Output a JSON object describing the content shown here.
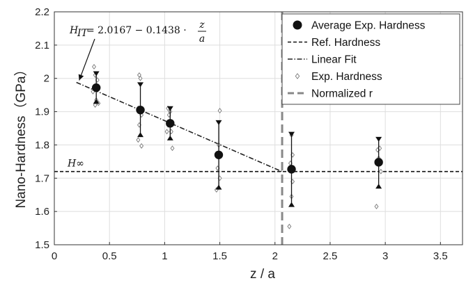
{
  "chart_data": {
    "type": "scatter",
    "xlabel": "z / a",
    "ylabel": "Nano-Hardness（GPa）",
    "xlim": [
      0,
      3.7
    ],
    "ylim": [
      1.5,
      2.2
    ],
    "xticks": [
      0,
      0.5,
      1,
      1.5,
      2,
      2.5,
      3,
      3.5
    ],
    "xtick_labels": [
      "0",
      "0.5",
      "1",
      "1.5",
      "2",
      "2.5",
      "3",
      "3.5"
    ],
    "yticks": [
      1.5,
      1.6,
      1.7,
      1.8,
      1.9,
      2.0,
      2.1,
      2.2
    ],
    "ytick_labels": [
      "1.5",
      "1.6",
      "1.7",
      "1.8",
      "1.9",
      "2",
      "2.1",
      "2.2"
    ],
    "grid": true,
    "legend_position": "top-right",
    "legend": [
      {
        "label": "Average Exp. Hardness",
        "marker": "filled-circle"
      },
      {
        "label": "Ref. Hardness",
        "marker": "dashed-line"
      },
      {
        "label": "Linear Fit",
        "marker": "dashdot-line"
      },
      {
        "label": "Exp. Hardness",
        "marker": "open-diamond"
      },
      {
        "label": "Normalized r",
        "marker": "thick-gray-dashed-line"
      }
    ],
    "series": [
      {
        "name": "Average Exp. Hardness",
        "points": [
          {
            "x": 0.38,
            "y": 1.972,
            "err_high": 2.015,
            "err_low": 1.93
          },
          {
            "x": 0.78,
            "y": 1.905,
            "err_high": 1.982,
            "err_low": 1.83
          },
          {
            "x": 1.05,
            "y": 1.865,
            "err_high": 1.91,
            "err_low": 1.82
          },
          {
            "x": 1.49,
            "y": 1.77,
            "err_high": 1.868,
            "err_low": 1.672
          },
          {
            "x": 2.15,
            "y": 1.727,
            "err_high": 1.833,
            "err_low": 1.62
          },
          {
            "x": 2.94,
            "y": 1.748,
            "err_high": 1.818,
            "err_low": 1.675
          }
        ]
      },
      {
        "name": "Exp. Hardness",
        "points": [
          {
            "x": 0.36,
            "y": 2.035
          },
          {
            "x": 0.37,
            "y": 2.01
          },
          {
            "x": 0.39,
            "y": 1.995
          },
          {
            "x": 0.35,
            "y": 1.96
          },
          {
            "x": 0.38,
            "y": 1.935
          },
          {
            "x": 0.4,
            "y": 1.925
          },
          {
            "x": 0.37,
            "y": 1.92
          },
          {
            "x": 0.77,
            "y": 2.01
          },
          {
            "x": 0.78,
            "y": 2.0
          },
          {
            "x": 0.76,
            "y": 1.91
          },
          {
            "x": 0.79,
            "y": 1.89
          },
          {
            "x": 0.77,
            "y": 1.86
          },
          {
            "x": 0.76,
            "y": 1.815
          },
          {
            "x": 0.79,
            "y": 1.797
          },
          {
            "x": 1.03,
            "y": 1.91
          },
          {
            "x": 1.05,
            "y": 1.9
          },
          {
            "x": 1.04,
            "y": 1.89
          },
          {
            "x": 1.03,
            "y": 1.86
          },
          {
            "x": 1.06,
            "y": 1.84
          },
          {
            "x": 1.02,
            "y": 1.84
          },
          {
            "x": 1.07,
            "y": 1.79
          },
          {
            "x": 1.5,
            "y": 1.903
          },
          {
            "x": 1.49,
            "y": 1.8
          },
          {
            "x": 1.48,
            "y": 1.73
          },
          {
            "x": 1.5,
            "y": 1.7
          },
          {
            "x": 1.47,
            "y": 1.665
          },
          {
            "x": 2.15,
            "y": 1.83
          },
          {
            "x": 2.16,
            "y": 1.77
          },
          {
            "x": 2.14,
            "y": 1.745
          },
          {
            "x": 2.16,
            "y": 1.69
          },
          {
            "x": 2.15,
            "y": 1.645
          },
          {
            "x": 2.13,
            "y": 1.555
          },
          {
            "x": 2.95,
            "y": 1.79
          },
          {
            "x": 2.93,
            "y": 1.785
          },
          {
            "x": 2.94,
            "y": 1.76
          },
          {
            "x": 2.96,
            "y": 1.72
          },
          {
            "x": 2.92,
            "y": 1.615
          }
        ]
      }
    ],
    "ref_hardness": {
      "y": 1.72,
      "label": "H∞"
    },
    "linear_fit": {
      "intercept": 2.0167,
      "slope": -0.1438,
      "x_start": 0.2,
      "x_end": 2.06
    },
    "normalized_r": {
      "x": 2.065
    },
    "annotation": {
      "formula_left": "H",
      "formula_sub": "IT",
      "formula_mid": " = 2.0167 − 0.1438 ·",
      "formula_num": "z",
      "formula_den": "a",
      "arrow_to": {
        "x": 0.2,
        "y": 1.99
      }
    }
  }
}
